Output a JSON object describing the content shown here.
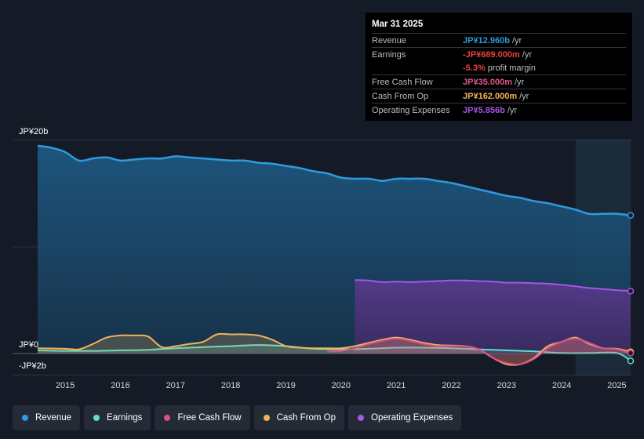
{
  "tooltip": {
    "date": "Mar 31 2025",
    "rows": [
      {
        "name": "Revenue",
        "value": "JP¥12.960b",
        "unit": "/yr",
        "color": "#2f9ae0"
      },
      {
        "name": "Earnings",
        "value": "-JP¥689.000m",
        "unit": "/yr",
        "color": "#e6423d"
      },
      {
        "name": "",
        "value": "-5.3%",
        "unit": "profit margin",
        "color": "#e6423d"
      },
      {
        "name": "Free Cash Flow",
        "value": "JP¥35.000m",
        "unit": "/yr",
        "color": "#e0578a"
      },
      {
        "name": "Cash From Op",
        "value": "JP¥162.000m",
        "unit": "/yr",
        "color": "#f0b35a"
      },
      {
        "name": "Operating Expenses",
        "value": "JP¥5.856b",
        "unit": "/yr",
        "color": "#a656e8"
      }
    ]
  },
  "legend": [
    {
      "label": "Revenue",
      "color": "#2f9ae0"
    },
    {
      "label": "Earnings",
      "color": "#5de0cf"
    },
    {
      "label": "Free Cash Flow",
      "color": "#d9508a"
    },
    {
      "label": "Cash From Op",
      "color": "#f0b35a"
    },
    {
      "label": "Operating Expenses",
      "color": "#a656e8"
    }
  ],
  "chart_data": {
    "type": "area",
    "title": "",
    "ylabel_top": "JP¥20b",
    "ylabel_zero": "JP¥0",
    "ylabel_bottom": "-JP¥2b",
    "ylim": [
      -2,
      20
    ],
    "xlim": [
      2014.5,
      2025.25
    ],
    "x_ticks": [
      "2015",
      "2016",
      "2017",
      "2018",
      "2019",
      "2020",
      "2021",
      "2022",
      "2023",
      "2024",
      "2025"
    ],
    "forecast_start": 2024.25,
    "series": [
      {
        "name": "Revenue",
        "color": "#2f9ae0",
        "fill": true,
        "x": [
          2014.5,
          2014.75,
          2015.0,
          2015.25,
          2015.5,
          2015.75,
          2016.0,
          2016.25,
          2016.5,
          2016.75,
          2017.0,
          2017.25,
          2017.5,
          2017.75,
          2018.0,
          2018.25,
          2018.5,
          2018.75,
          2019.0,
          2019.25,
          2019.5,
          2019.75,
          2020.0,
          2020.25,
          2020.5,
          2020.75,
          2021.0,
          2021.25,
          2021.5,
          2021.75,
          2022.0,
          2022.25,
          2022.5,
          2022.75,
          2023.0,
          2023.25,
          2023.5,
          2023.75,
          2024.0,
          2024.25,
          2024.5,
          2024.75,
          2025.0,
          2025.25
        ],
        "values": [
          19.5,
          19.3,
          18.9,
          18.1,
          18.3,
          18.4,
          18.1,
          18.2,
          18.3,
          18.3,
          18.5,
          18.4,
          18.3,
          18.2,
          18.1,
          18.1,
          17.9,
          17.8,
          17.6,
          17.4,
          17.1,
          16.9,
          16.5,
          16.4,
          16.4,
          16.2,
          16.4,
          16.4,
          16.4,
          16.2,
          16.0,
          15.7,
          15.4,
          15.1,
          14.8,
          14.6,
          14.3,
          14.1,
          13.8,
          13.5,
          13.1,
          13.1,
          13.1,
          12.96
        ]
      },
      {
        "name": "Earnings",
        "color": "#5de0cf",
        "fill": true,
        "x": [
          2014.5,
          2015.0,
          2015.5,
          2016.0,
          2016.5,
          2017.0,
          2017.5,
          2018.0,
          2018.5,
          2019.0,
          2019.5,
          2020.0,
          2020.5,
          2021.0,
          2021.5,
          2022.0,
          2022.5,
          2023.0,
          2023.5,
          2024.0,
          2024.5,
          2025.0,
          2025.25
        ],
        "values": [
          0.3,
          0.25,
          0.25,
          0.3,
          0.35,
          0.5,
          0.6,
          0.7,
          0.8,
          0.7,
          0.45,
          0.4,
          0.45,
          0.55,
          0.55,
          0.5,
          0.4,
          0.3,
          0.2,
          0.05,
          0.05,
          0.05,
          -0.689
        ]
      },
      {
        "name": "Free Cash Flow",
        "color": "#d9508a",
        "fill": true,
        "x": [
          2019.75,
          2020.0,
          2020.25,
          2020.5,
          2020.75,
          2021.0,
          2021.25,
          2021.5,
          2021.75,
          2022.0,
          2022.25,
          2022.5,
          2022.75,
          2023.0,
          2023.25,
          2023.5,
          2023.75,
          2024.0,
          2024.25,
          2024.5,
          2024.75,
          2025.0,
          2025.25
        ],
        "values": [
          0.2,
          0.25,
          0.5,
          0.9,
          1.2,
          1.4,
          1.2,
          0.9,
          0.7,
          0.7,
          0.7,
          0.4,
          -0.4,
          -0.9,
          -1.0,
          -0.5,
          0.5,
          1.1,
          1.4,
          1.0,
          0.5,
          0.4,
          0.035
        ]
      },
      {
        "name": "Cash From Op",
        "color": "#f0b35a",
        "fill": true,
        "x": [
          2014.5,
          2015.0,
          2015.25,
          2015.5,
          2015.75,
          2016.0,
          2016.25,
          2016.5,
          2016.75,
          2017.0,
          2017.25,
          2017.5,
          2017.75,
          2018.0,
          2018.25,
          2018.5,
          2018.75,
          2019.0,
          2019.25,
          2019.5,
          2019.75,
          2020.0,
          2020.25,
          2020.5,
          2020.75,
          2021.0,
          2021.25,
          2021.5,
          2021.75,
          2022.0,
          2022.25,
          2022.5,
          2022.75,
          2023.0,
          2023.25,
          2023.5,
          2023.75,
          2024.0,
          2024.25,
          2024.5,
          2024.75,
          2025.0,
          2025.25
        ],
        "values": [
          0.5,
          0.45,
          0.4,
          0.9,
          1.5,
          1.7,
          1.7,
          1.6,
          0.6,
          0.7,
          0.9,
          1.1,
          1.8,
          1.8,
          1.8,
          1.7,
          1.3,
          0.7,
          0.55,
          0.5,
          0.5,
          0.5,
          0.7,
          1.0,
          1.3,
          1.5,
          1.3,
          1.0,
          0.8,
          0.75,
          0.7,
          0.4,
          -0.4,
          -1.0,
          -1.0,
          -0.4,
          0.7,
          1.1,
          1.5,
          0.9,
          0.5,
          0.45,
          0.162
        ]
      },
      {
        "name": "Operating Expenses",
        "color": "#a656e8",
        "fill": true,
        "x": [
          2020.25,
          2020.5,
          2020.75,
          2021.0,
          2021.25,
          2021.5,
          2021.75,
          2022.0,
          2022.25,
          2022.5,
          2022.75,
          2023.0,
          2023.25,
          2023.5,
          2023.75,
          2024.0,
          2024.25,
          2024.5,
          2024.75,
          2025.0,
          2025.25
        ],
        "values": [
          6.9,
          6.85,
          6.7,
          6.75,
          6.7,
          6.75,
          6.8,
          6.85,
          6.85,
          6.8,
          6.75,
          6.65,
          6.65,
          6.6,
          6.55,
          6.45,
          6.3,
          6.15,
          6.05,
          5.95,
          5.856
        ]
      }
    ]
  }
}
